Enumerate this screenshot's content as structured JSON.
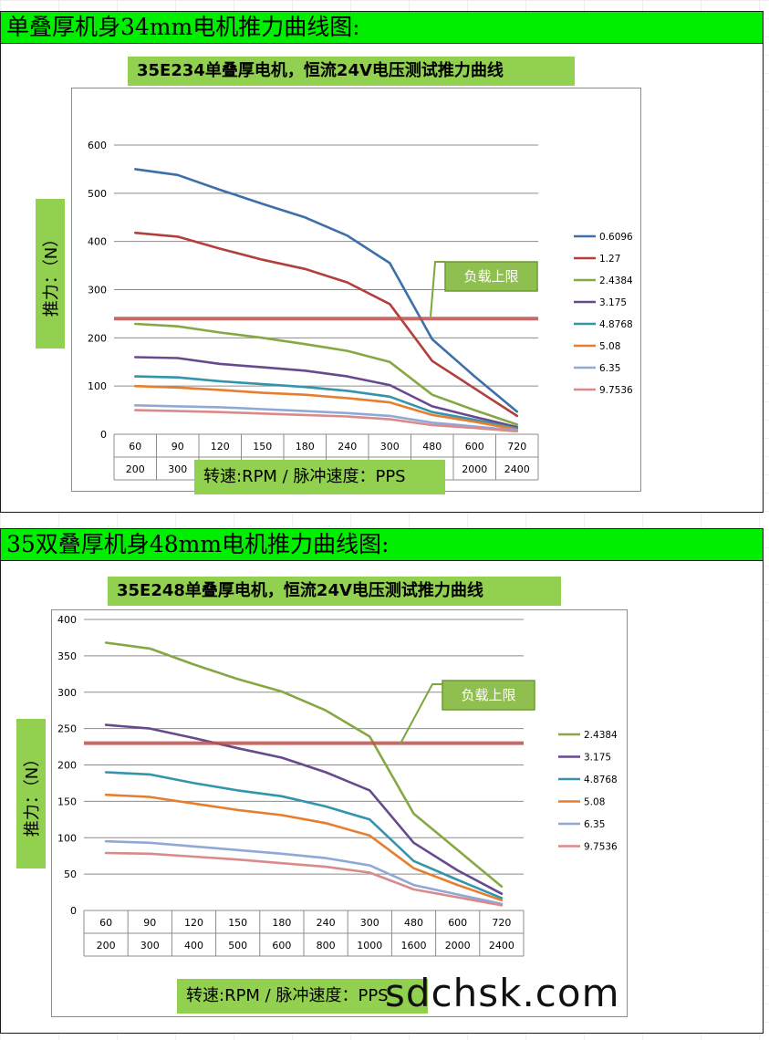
{
  "section1": {
    "heading": "单叠厚机身34mm电机推力曲线图:"
  },
  "section2": {
    "heading": "35双叠厚机身48mm电机推力曲线图:"
  },
  "watermark": "sdchsk.com",
  "colors": {
    "0.6096": "#3d6fa8",
    "1.27": "#b23f3b",
    "2.4384": "#86a844",
    "3.175": "#674a8e",
    "4.8768": "#3294ad",
    "5.08": "#e57f2f",
    "6.35": "#8fa8d6",
    "9.7536": "#d98a8a",
    "limit": "#c0504d",
    "label_bg": "#92d050"
  },
  "chart_data": [
    {
      "type": "line",
      "title": "35E234单叠厚电机，恒流24V电压测试推力曲线",
      "xlabel": "转速:RPM / 脉冲速度：PPS",
      "ylabel": "推力：（N）",
      "categories_rpm": [
        "60",
        "90",
        "120",
        "150",
        "180",
        "240",
        "300",
        "480",
        "600",
        "720"
      ],
      "categories_pps": [
        "200",
        "300",
        "400",
        "500",
        "600",
        "800",
        "1000",
        "1600",
        "2000",
        "2400"
      ],
      "ylim": [
        0,
        600
      ],
      "yticks": [
        0,
        100,
        200,
        300,
        400,
        500,
        600
      ],
      "grid": true,
      "legend": "right",
      "annotation": {
        "label": "负载上限",
        "value": 240
      },
      "series": [
        {
          "name": "0.6096",
          "values": [
            550,
            538,
            507,
            478,
            450,
            412,
            355,
            197,
            120,
            47
          ]
        },
        {
          "name": "1.27",
          "values": [
            418,
            410,
            385,
            362,
            343,
            315,
            270,
            152,
            95,
            38
          ]
        },
        {
          "name": "2.4384",
          "values": [
            229,
            224,
            211,
            200,
            187,
            173,
            150,
            82,
            50,
            20
          ]
        },
        {
          "name": "3.175",
          "values": [
            160,
            158,
            146,
            139,
            132,
            120,
            102,
            58,
            36,
            15
          ]
        },
        {
          "name": "4.8768",
          "values": [
            120,
            118,
            110,
            104,
            98,
            90,
            78,
            46,
            30,
            12
          ]
        },
        {
          "name": "5.08",
          "values": [
            100,
            97,
            92,
            86,
            82,
            75,
            66,
            40,
            26,
            10
          ]
        },
        {
          "name": "6.35",
          "values": [
            60,
            58,
            56,
            52,
            48,
            44,
            38,
            24,
            16,
            8
          ]
        },
        {
          "name": "9.7536",
          "values": [
            50,
            48,
            46,
            43,
            40,
            37,
            31,
            19,
            13,
            6
          ]
        }
      ]
    },
    {
      "type": "line",
      "title": "35E248单叠厚电机，恒流24V电压测试推力曲线",
      "xlabel": "转速:RPM / 脉冲速度：PPS",
      "ylabel": "推力：（N）",
      "categories_rpm": [
        "60",
        "90",
        "120",
        "150",
        "180",
        "240",
        "300",
        "480",
        "600",
        "720"
      ],
      "categories_pps": [
        "200",
        "300",
        "400",
        "500",
        "600",
        "800",
        "1000",
        "1600",
        "2000",
        "2400"
      ],
      "ylim": [
        0,
        400
      ],
      "yticks": [
        0,
        50,
        100,
        150,
        200,
        250,
        300,
        350,
        400
      ],
      "grid": true,
      "legend": "right",
      "annotation": {
        "label": "负载上限",
        "value": 230
      },
      "series": [
        {
          "name": "2.4384",
          "values": [
            368,
            360,
            338,
            318,
            301,
            275,
            239,
            133,
            83,
            33
          ]
        },
        {
          "name": "3.175",
          "values": [
            255,
            250,
            237,
            223,
            210,
            190,
            165,
            93,
            55,
            23
          ]
        },
        {
          "name": "4.8768",
          "values": [
            190,
            187,
            175,
            165,
            157,
            143,
            125,
            68,
            42,
            17
          ]
        },
        {
          "name": "5.08",
          "values": [
            159,
            156,
            147,
            138,
            131,
            120,
            103,
            58,
            35,
            14
          ]
        },
        {
          "name": "6.35",
          "values": [
            95,
            93,
            88,
            83,
            78,
            72,
            62,
            35,
            22,
            9
          ]
        },
        {
          "name": "9.7536",
          "values": [
            79,
            78,
            74,
            70,
            65,
            60,
            52,
            29,
            18,
            7
          ]
        }
      ]
    }
  ]
}
